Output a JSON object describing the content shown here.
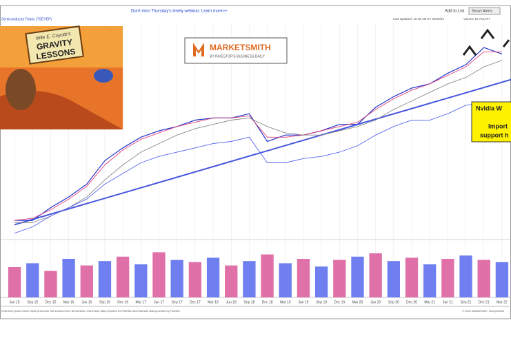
{
  "header": {
    "banner": "Don't miss Thursday's timely webinar: Learn more>>",
    "add_to_list": "Add to List",
    "smart_alerts": "Smart Alerts",
    "symbol": "Semiconductor Fabric (TSEYEP)",
    "last_updated": "Last Updated: 10:15 AM ET 06/29/22",
    "volume": "Volume 10,703,077"
  },
  "cartoon": {
    "line1": "Wile E. Coyote's",
    "line2": "GRAVITY",
    "line3": "LESSONS"
  },
  "logo": {
    "name": "MARKETSMITH",
    "tagline": "BY INVESTOR'S BUSINESS DAILY"
  },
  "callout": {
    "line1": "Nvidia W",
    "line2": "Import",
    "line3": "support h"
  },
  "footer": {
    "left": "Real-time quote and/or trade prices are not sourced from all markets. Ownership data provided by Refinitiv and Estimate data provided by FactSet.",
    "right": "© 2022 MarketSmith, Incorporated"
  },
  "chart_data": {
    "type": "line",
    "categories": [
      "Jun 15",
      "Sep 15",
      "Dec 15",
      "Mar 16",
      "Jun 16",
      "Sep 16",
      "Dec 16",
      "Mar 17",
      "Jun 17",
      "Sep 17",
      "Dec 17",
      "Mar 18",
      "Jun 18",
      "Sep 18",
      "Dec 18",
      "Mar 19",
      "Jun 19",
      "Sep 19",
      "Dec 19",
      "Mar 20",
      "Jun 20",
      "Sep 20",
      "Dec 20",
      "Mar 21",
      "Jun 21",
      "Sep 21",
      "Dec 21",
      "Mar 22"
    ],
    "ylim": [
      0,
      100
    ],
    "series": [
      {
        "color": "#2233cc",
        "values": [
          8,
          8,
          14,
          19,
          25,
          36,
          42,
          47,
          50,
          52,
          55,
          56,
          56,
          58,
          45,
          48,
          48,
          50,
          53,
          53,
          61,
          66,
          70,
          72,
          77,
          81,
          89,
          86
        ]
      },
      {
        "color": "#e0407a",
        "values": [
          8,
          9,
          13,
          18,
          24,
          34,
          41,
          46,
          49,
          52,
          54,
          56,
          56,
          57,
          47,
          47,
          48,
          50,
          52,
          54,
          60,
          65,
          69,
          72,
          76,
          80,
          87,
          87
        ]
      },
      {
        "color": "#888888",
        "values": [
          7,
          7,
          10,
          14,
          19,
          27,
          34,
          40,
          44,
          48,
          51,
          53,
          55,
          56,
          52,
          49,
          48,
          48,
          50,
          52,
          55,
          60,
          64,
          68,
          72,
          75,
          80,
          83
        ]
      },
      {
        "color": "#5566ee",
        "values": [
          2,
          5,
          10,
          14,
          18,
          25,
          30,
          35,
          38,
          40,
          42,
          44,
          45,
          47,
          35,
          35,
          37,
          38,
          40,
          43,
          48,
          52,
          55,
          55,
          58,
          62,
          63,
          55
        ]
      }
    ],
    "trendline": {
      "color": "#4455dd",
      "values": [
        6,
        74
      ]
    },
    "volume": {
      "ylim": [
        0,
        100
      ],
      "colors": [
        "#e070a8",
        "#6f7ff0"
      ],
      "values": [
        55,
        62,
        48,
        70,
        58,
        66,
        74,
        60,
        82,
        68,
        64,
        72,
        58,
        66,
        78,
        62,
        70,
        56,
        68,
        74,
        80,
        66,
        72,
        60,
        70,
        76,
        68,
        64
      ]
    }
  }
}
